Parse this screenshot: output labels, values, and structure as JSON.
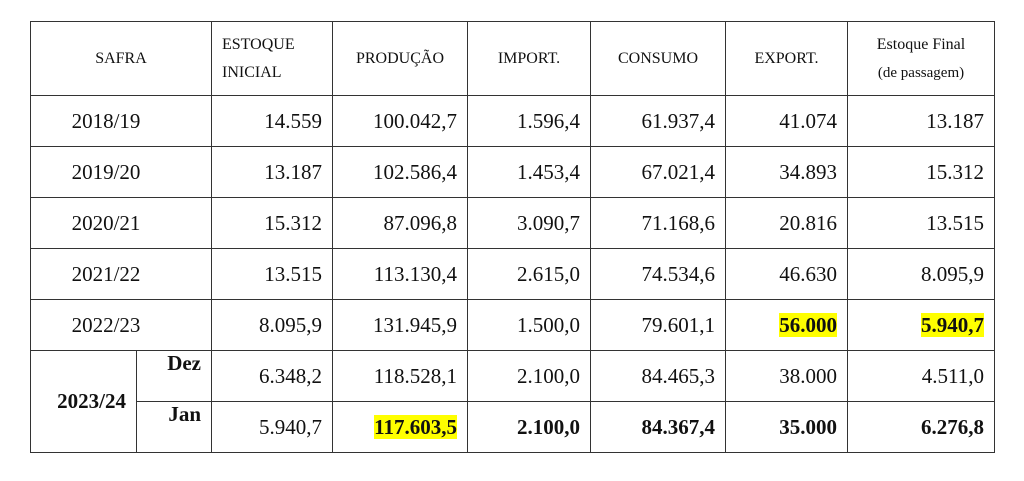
{
  "headers": {
    "safra": "SAFRA",
    "estoque_inicial": [
      "ESTOQUE",
      "INICIAL"
    ],
    "producao": "PRODUÇÃO",
    "import": "IMPORT.",
    "consumo": "CONSUMO",
    "export": "EXPORT.",
    "estoque_final": [
      "Estoque Final",
      "(de passagem)"
    ]
  },
  "rows": [
    {
      "safra": "2018/19",
      "estoque_inicial": "14.559",
      "producao": "100.042,7",
      "import": "1.596,4",
      "consumo": "61.937,4",
      "export": "41.074",
      "estoque_final": "13.187"
    },
    {
      "safra": "2019/20",
      "estoque_inicial": "13.187",
      "producao": "102.586,4",
      "import": "1.453,4",
      "consumo": "67.021,4",
      "export": "34.893",
      "estoque_final": "15.312"
    },
    {
      "safra": "2020/21",
      "estoque_inicial": "15.312",
      "producao": "87.096,8",
      "import": "3.090,7",
      "consumo": "71.168,6",
      "export": "20.816",
      "estoque_final": "13.515"
    },
    {
      "safra": "2021/22",
      "estoque_inicial": "13.515",
      "producao": "113.130,4",
      "import": "2.615,0",
      "consumo": "74.534,6",
      "export": "46.630",
      "estoque_final": "8.095,9"
    },
    {
      "safra": "2022/23",
      "estoque_inicial": "8.095,9",
      "producao": "131.945,9",
      "import": "1.500,0",
      "consumo": "79.601,1",
      "export": "56.000",
      "estoque_final": "5.940,7"
    }
  ],
  "group": {
    "safra": "2023/24",
    "dez": {
      "month": "Dez",
      "estoque_inicial": "6.348,2",
      "producao": "118.528,1",
      "import": "2.100,0",
      "consumo": "84.465,3",
      "export": "38.000",
      "estoque_final": "4.511,0"
    },
    "jan": {
      "month": "Jan",
      "estoque_inicial": "5.940,7",
      "producao": "117.603,5",
      "import": "2.100,0",
      "consumo": "84.367,4",
      "export": "35.000",
      "estoque_final": "6.276,8"
    }
  },
  "colors": {
    "highlight": "#ffff00",
    "border": "#333333"
  }
}
